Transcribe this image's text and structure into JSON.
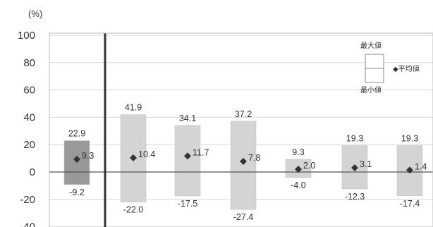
{
  "chart_data": {
    "type": "bar",
    "unit_label": "(%)",
    "ylim": [
      -40,
      100
    ],
    "yticks": [
      -40,
      -20,
      0,
      20,
      40,
      60,
      80,
      100
    ],
    "grid": true,
    "legend_position": "top-right",
    "legend": {
      "max_label": "最大値",
      "avg_label": "◆平均値",
      "min_label": "最小値"
    },
    "series": [
      {
        "name": "最大値",
        "values": [
          22.9,
          41.9,
          34.1,
          37.2,
          9.3,
          19.3,
          19.3
        ]
      },
      {
        "name": "最小値",
        "values": [
          -9.2,
          -22.0,
          -17.5,
          -27.4,
          -4.0,
          -12.3,
          -17.4
        ]
      },
      {
        "name": "平均値",
        "values": [
          9.3,
          10.4,
          11.7,
          7.8,
          2.0,
          3.1,
          1.4
        ]
      }
    ],
    "bar_colors": [
      "#999999",
      "#d4d4d4",
      "#d4d4d4",
      "#d4d4d4",
      "#d4d4d4",
      "#d4d4d4",
      "#d4d4d4"
    ],
    "marker_color": "#333333"
  }
}
